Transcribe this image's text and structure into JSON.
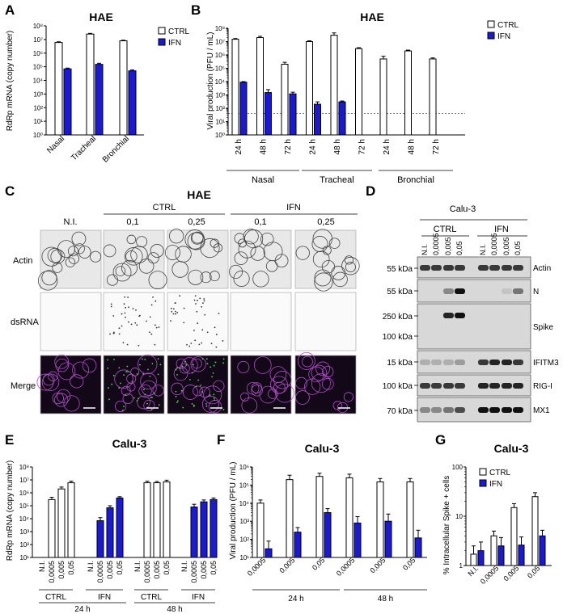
{
  "colors": {
    "ctrl": "#ffffff",
    "ifn": "#1a1ad6",
    "merge_bg": "#120818",
    "blot_bg": "#d8d8d8",
    "band": "#111111"
  },
  "legend": {
    "ctrl": "CTRL",
    "ifn": "IFN"
  },
  "panelA": {
    "letter": "A",
    "title": "HAE",
    "ylabel": "RdRp mRNA (copy number)",
    "yticks": [
      "10⁰",
      "10¹",
      "10²",
      "10³",
      "10⁴",
      "10⁵",
      "10⁶",
      "10⁷",
      "10⁸"
    ],
    "categories": [
      "Nasal",
      "Tracheal",
      "Bronchial"
    ]
  },
  "panelB": {
    "letter": "B",
    "title": "HAE",
    "ylabel": "Viral production (PFU / mL)",
    "yticks": [
      "10⁰",
      "10¹",
      "10²",
      "10³",
      "10⁴",
      "10⁵",
      "10⁶",
      "10⁷",
      "10⁸"
    ],
    "timepoints": [
      "24 h",
      "48 h",
      "72 h",
      "24 h",
      "48 h",
      "72 h",
      "24 h",
      "48 h",
      "72 h"
    ],
    "groups": [
      "Nasal",
      "Tracheal",
      "Bronchial"
    ]
  },
  "panelC": {
    "letter": "C",
    "title": "HAE",
    "col_labels": [
      "N.I.",
      "0,1",
      "0,25",
      "0,1",
      "0,25"
    ],
    "group_labels": [
      "CTRL",
      "IFN"
    ],
    "row_labels": [
      "Actin",
      "dsRNA",
      "Merge"
    ]
  },
  "panelD": {
    "letter": "D",
    "title": "Calu-3",
    "group_labels": [
      "CTRL",
      "IFN"
    ],
    "lane_labels": [
      "N.I.",
      "0,0005",
      "0,005",
      "0,05",
      "N.I.",
      "0,0005",
      "0,005",
      "0,05"
    ],
    "blots": [
      {
        "kda": [
          "55 kDa"
        ],
        "name": "Actin"
      },
      {
        "kda": [
          "55 kDa"
        ],
        "name": "N"
      },
      {
        "kda": [
          "250 kDa",
          "100 kDa"
        ],
        "name": "Spike"
      },
      {
        "kda": [
          "15 kDa"
        ],
        "name": "IFITM3"
      },
      {
        "kda": [
          "100 kDa"
        ],
        "name": "RIG-I"
      },
      {
        "kda": [
          "70 kDa"
        ],
        "name": "MX1"
      }
    ]
  },
  "panelE": {
    "letter": "E",
    "title": "Calu-3",
    "ylabel": "RdRp mRNA (copy number)",
    "yticks": [
      "10¹",
      "10²",
      "10³",
      "10⁴",
      "10⁵",
      "10⁶",
      "10⁷",
      "10⁸"
    ],
    "doses": [
      "N.I.",
      "0,0005",
      "0,005",
      "0,05",
      "N.I.",
      "0,0005",
      "0,005",
      "0,05",
      "N.I.",
      "0,0005",
      "0,005",
      "0,05",
      "N.I.",
      "0,0005",
      "0,005",
      "0,05"
    ],
    "groups": [
      "CTRL",
      "IFN",
      "CTRL",
      "IFN"
    ],
    "times": [
      "24 h",
      "48 h"
    ]
  },
  "panelF": {
    "letter": "F",
    "title": "Calu-3",
    "ylabel": "Viral production (PFU / mL)",
    "yticks": [
      "10¹",
      "10²",
      "10³",
      "10⁴",
      "10⁵",
      "10⁶"
    ],
    "doses": [
      "0,0005",
      "0,005",
      "0,05",
      "0,0005",
      "0,005",
      "0,05"
    ],
    "times": [
      "24 h",
      "48 h"
    ]
  },
  "panelG": {
    "letter": "G",
    "title": "Calu-3",
    "ylabel": "% Intracellular Spike + cells",
    "yticks": [
      "1",
      "10",
      "100"
    ],
    "doses": [
      "N.I.",
      "0,0005",
      "0,005",
      "0,05"
    ]
  },
  "chart_data": [
    {
      "panel": "A",
      "type": "bar",
      "title": "HAE",
      "ylabel": "RdRp mRNA (copy number)",
      "yscale": "log",
      "ylim": [
        1,
        100000000
      ],
      "categories": [
        "Nasal",
        "Tracheal",
        "Bronchial"
      ],
      "series": [
        {
          "name": "CTRL",
          "values": [
            6000000,
            25000000,
            8000000
          ],
          "err": [
            800000,
            3000000,
            900000
          ]
        },
        {
          "name": "IFN",
          "values": [
            70000,
            150000,
            50000
          ],
          "err": [
            10000,
            30000,
            8000
          ]
        }
      ]
    },
    {
      "panel": "B",
      "type": "bar",
      "title": "HAE",
      "ylabel": "Viral production (PFU / mL)",
      "yscale": "log",
      "ylim": [
        1,
        100000000
      ],
      "detection_limit": 40,
      "categories": [
        "Nasal 24 h",
        "Nasal 48 h",
        "Nasal 72 h",
        "Tracheal 24 h",
        "Tracheal 48 h",
        "Tracheal 72 h",
        "Bronchial 24 h",
        "Bronchial 48 h",
        "Bronchial 72 h"
      ],
      "series": [
        {
          "name": "CTRL",
          "values": [
            15000000,
            20000000,
            200000,
            10000000,
            30000000,
            3000000,
            500000,
            2000000,
            500000
          ],
          "err": [
            2000000,
            5000000,
            80000,
            1500000,
            15000000,
            500000,
            300000,
            300000,
            100000
          ]
        },
        {
          "name": "IFN",
          "values": [
            9000,
            1500,
            1200,
            200,
            300,
            null,
            null,
            null,
            null
          ],
          "err": [
            1000,
            1000,
            400,
            100,
            50,
            null,
            null,
            null,
            null
          ]
        }
      ]
    },
    {
      "panel": "E",
      "type": "bar",
      "title": "Calu-3",
      "ylabel": "RdRp mRNA (copy number)",
      "yscale": "log",
      "ylim": [
        10,
        100000000
      ],
      "categories": [
        "24 h CTRL N.I.",
        "24 h CTRL 0,0005",
        "24 h CTRL 0,005",
        "24 h CTRL 0,05",
        "24 h IFN N.I.",
        "24 h IFN 0,0005",
        "24 h IFN 0,005",
        "24 h IFN 0,05",
        "48 h CTRL N.I.",
        "48 h CTRL 0,0005",
        "48 h CTRL 0,005",
        "48 h CTRL 0,05",
        "48 h IFN N.I.",
        "48 h IFN 0,0005",
        "48 h IFN 0,005",
        "48 h IFN 0,05"
      ],
      "series": [
        {
          "name": "values",
          "group": [
            0,
            0,
            0,
            0,
            1,
            1,
            1,
            1,
            0,
            0,
            0,
            0,
            1,
            1,
            1,
            1
          ],
          "values": [
            null,
            300000,
            2000000,
            6000000,
            null,
            7000,
            70000,
            400000,
            null,
            6000000,
            6000000,
            7000000,
            null,
            80000,
            200000,
            300000
          ],
          "err": [
            null,
            150000,
            800000,
            2000000,
            null,
            5000,
            30000,
            100000,
            null,
            2000000,
            1500000,
            2500000,
            null,
            50000,
            80000,
            100000
          ]
        }
      ]
    },
    {
      "panel": "F",
      "type": "bar",
      "title": "Calu-3",
      "ylabel": "Viral production (PFU / mL)",
      "yscale": "log",
      "ylim": [
        10,
        1000000
      ],
      "categories": [
        "24 h 0,0005",
        "24 h 0,005",
        "24 h 0,05",
        "48 h 0,0005",
        "48 h 0,005",
        "48 h 0,05"
      ],
      "series": [
        {
          "name": "CTRL",
          "values": [
            10000,
            200000,
            300000,
            250000,
            150000,
            150000
          ],
          "err": [
            5000,
            150000,
            150000,
            150000,
            80000,
            80000
          ]
        },
        {
          "name": "IFN",
          "values": [
            30,
            250,
            3000,
            800,
            1000,
            120
          ],
          "err": [
            50,
            200,
            2000,
            1000,
            1500,
            200
          ]
        }
      ]
    },
    {
      "panel": "G",
      "type": "bar",
      "title": "Calu-3",
      "ylabel": "% Intracellular Spike + cells",
      "yscale": "log",
      "ylim": [
        1,
        100
      ],
      "categories": [
        "N.I.",
        "0,0005",
        "0,005",
        "0,05"
      ],
      "series": [
        {
          "name": "CTRL",
          "values": [
            1.7,
            4,
            15,
            25
          ],
          "err": [
            0.8,
            1,
            3,
            5
          ]
        },
        {
          "name": "IFN",
          "values": [
            2,
            2.5,
            2.6,
            4
          ],
          "err": [
            1,
            1.2,
            1.2,
            1.2
          ]
        }
      ]
    }
  ]
}
